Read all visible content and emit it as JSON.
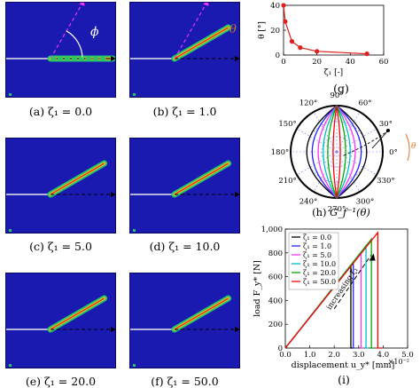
{
  "panels": [
    {
      "caption": "(a) ζ₁ = 0.0",
      "angle_deg": 0,
      "annotation": "ϕ"
    },
    {
      "caption": "(b) ζ₁ = 1.0",
      "angle_deg": 30,
      "annotation": "θ"
    },
    {
      "caption": "(c) ζ₁ = 5.0",
      "angle_deg": 30
    },
    {
      "caption": "(d) ζ₁ = 10.0",
      "angle_deg": 30
    },
    {
      "caption": "(e) ζ₁ = 20.0",
      "angle_deg": 30
    },
    {
      "caption": "(f) ζ₁ = 50.0",
      "angle_deg": 30
    }
  ],
  "captions": {
    "g": "(g)",
    "h": "(h)",
    "h_label": "G_f⁻¹(θ)",
    "i": "(i)"
  },
  "chart_data": [
    {
      "type": "line",
      "id": "g",
      "x": [
        0,
        1,
        5,
        10,
        20,
        50
      ],
      "y": [
        40,
        27,
        11,
        6,
        3,
        1
      ],
      "xlabel": "ζ₁ [-]",
      "ylabel": "θ [°]",
      "xlim": [
        0,
        60
      ],
      "ylim": [
        0,
        40
      ],
      "xticks": [
        "0",
        "20",
        "40",
        "60"
      ],
      "yticks": [
        "0",
        "20",
        "40"
      ],
      "color": "#e0201c"
    },
    {
      "type": "polar",
      "id": "h",
      "angle_labels": [
        "0°",
        "30°",
        "60°",
        "90°",
        "120°",
        "150°",
        "180°",
        "210°",
        "240°",
        "270°",
        "300°",
        "330°"
      ],
      "series": [
        {
          "zeta": 0.0,
          "color": "#000000"
        },
        {
          "zeta": 1.0,
          "color": "#2020ff"
        },
        {
          "zeta": 5.0,
          "color": "#ff33ff"
        },
        {
          "zeta": 10.0,
          "color": "#00c0c0"
        },
        {
          "zeta": 20.0,
          "color": "#00aa00"
        },
        {
          "zeta": 50.0,
          "color": "#ff0000"
        }
      ]
    },
    {
      "type": "line",
      "id": "i",
      "xlabel": "displacement u_y* [mm]",
      "ylabel": "load F_y* [N]",
      "x_multiplier": "×10⁻²",
      "xlim": [
        0,
        5
      ],
      "ylim": [
        0,
        1000
      ],
      "xticks": [
        "0.0",
        "1.0",
        "2.0",
        "3.0",
        "4.0",
        "5.0"
      ],
      "yticks": [
        "0",
        "200",
        "400",
        "600",
        "800",
        "1,000"
      ],
      "annotation": "increasing ζ₁",
      "legend_position": "top-left",
      "series": [
        {
          "name": "ζ₁ = 0.0",
          "color": "#000000",
          "x": [
            0,
            2.68,
            2.68,
            2.75
          ],
          "y": [
            0,
            690,
            0,
            0
          ]
        },
        {
          "name": "ζ₁ = 1.0",
          "color": "#2020ff",
          "x": [
            0,
            2.78,
            2.78,
            2.85
          ],
          "y": [
            0,
            715,
            0,
            0
          ]
        },
        {
          "name": "ζ₁ = 5.0",
          "color": "#ff33ff",
          "x": [
            0,
            3.1,
            3.1,
            3.2
          ],
          "y": [
            0,
            800,
            0,
            0
          ]
        },
        {
          "name": "ζ₁ = 10.0",
          "color": "#00c0c0",
          "x": [
            0,
            3.3,
            3.3,
            3.4
          ],
          "y": [
            0,
            860,
            0,
            0
          ]
        },
        {
          "name": "ζ₁ = 20.0",
          "color": "#00aa00",
          "x": [
            0,
            3.52,
            3.52,
            3.62
          ],
          "y": [
            0,
            915,
            0,
            0
          ]
        },
        {
          "name": "ζ₁ = 50.0",
          "color": "#ff0000",
          "x": [
            0,
            3.78,
            3.78,
            3.95
          ],
          "y": [
            0,
            970,
            0,
            0
          ]
        }
      ]
    }
  ]
}
